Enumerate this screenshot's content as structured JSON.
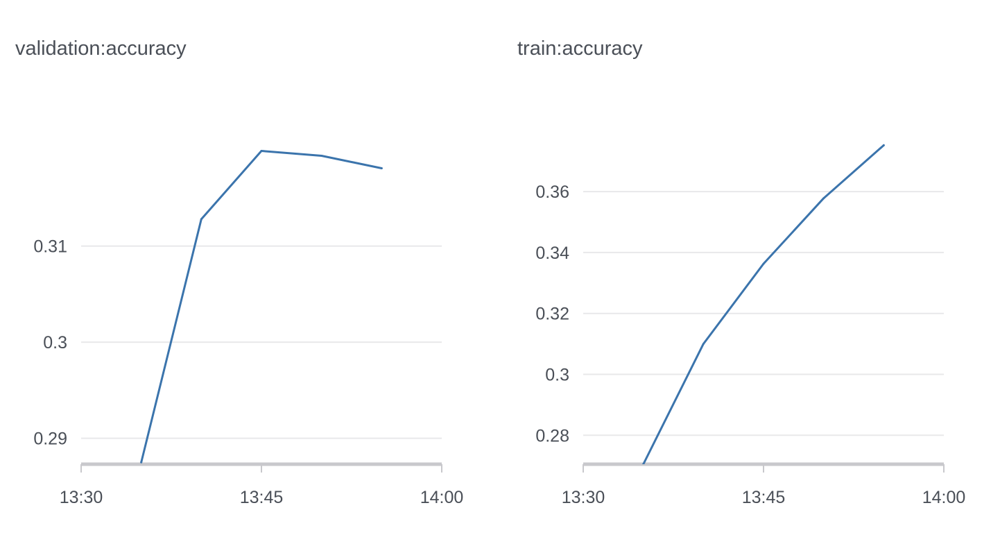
{
  "chart_data": [
    {
      "type": "line",
      "title": "validation:accuracy",
      "x": [
        "13:35",
        "13:40",
        "13:45",
        "13:50",
        "13:55"
      ],
      "y": [
        0.2875,
        0.3128,
        0.3199,
        0.3194,
        0.3181
      ],
      "x_ticks": [
        "13:30",
        "13:45",
        "14:00"
      ],
      "y_ticks": [
        0.29,
        0.3,
        0.31
      ],
      "y_tick_labels": [
        "0.29",
        "0.3",
        "0.31"
      ],
      "xlim": [
        "13:30",
        "14:00"
      ],
      "ylim": [
        0.2873,
        0.3255
      ],
      "grid": "horizontal",
      "line_color": "#3b74ac"
    },
    {
      "type": "line",
      "title": "train:accuracy",
      "x": [
        "13:35",
        "13:40",
        "13:45",
        "13:50",
        "13:55"
      ],
      "y": [
        0.2705,
        0.31,
        0.3363,
        0.3578,
        0.3752
      ],
      "x_ticks": [
        "13:30",
        "13:45",
        "14:00"
      ],
      "y_ticks": [
        0.28,
        0.3,
        0.32,
        0.34,
        0.36
      ],
      "y_tick_labels": [
        "0.28",
        "0.3",
        "0.32",
        "0.34",
        "0.36"
      ],
      "xlim": [
        "13:30",
        "14:00"
      ],
      "ylim": [
        0.2705,
        0.391
      ],
      "grid": "horizontal",
      "line_color": "#3b74ac"
    }
  ]
}
